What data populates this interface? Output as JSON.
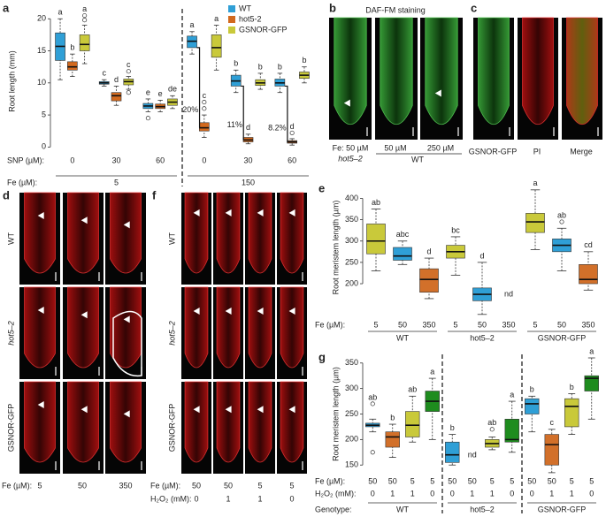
{
  "panels": [
    "a",
    "b",
    "c",
    "d",
    "e",
    "f",
    "g"
  ],
  "images": {
    "b": {
      "title": "DAF-FM staining",
      "fe1": "Fe: 50 µM",
      "geno1": "hot5–2",
      "fe2": "50 µM",
      "fe3": "250 µM",
      "geno2": "WT"
    },
    "c": {
      "labels": [
        "GSNOR-GFP",
        "PI",
        "Merge"
      ]
    },
    "d": {
      "rows": [
        "WT",
        "hot5–2",
        "GSNOR-GFP"
      ],
      "fe_label": "Fe (µM):",
      "fe": [
        "5",
        "50",
        "350"
      ]
    },
    "f": {
      "rows": [
        "WT",
        "hot5–2",
        "GSNOR-GFP"
      ],
      "fe_label": "Fe (µM):",
      "fe": [
        "50",
        "50",
        "5",
        "5"
      ],
      "h2o2_label": "H₂O₂ (mM):",
      "h2o2": [
        "0",
        "1",
        "1",
        "0"
      ]
    }
  },
  "chart_data": [
    {
      "type": "box",
      "ylabel": "Root length (mm)",
      "ylim": [
        -0.5,
        21
      ],
      "yticks": [
        0,
        5,
        10,
        15,
        20
      ],
      "dividers": true,
      "x_rows": [
        {
          "label": "SNP (µM):",
          "values": [
            "0",
            "30",
            "60",
            "0",
            "30",
            "60"
          ]
        }
      ],
      "group_row": {
        "label": "Fe (µM):",
        "values": [
          "5",
          "150"
        ]
      },
      "series": [
        {
          "name": "WT",
          "color": "#2f9fd6",
          "values": [
            {
              "min": 10.5,
              "q1": 13.5,
              "median": 15.7,
              "q3": 17.8,
              "max": 20,
              "outliers": [],
              "label": "a"
            },
            {
              "min": 9.5,
              "q1": 9.8,
              "median": 10,
              "q3": 10.2,
              "max": 10.5,
              "outliers": [],
              "label": "c"
            },
            {
              "min": 5.5,
              "q1": 6,
              "median": 6.4,
              "q3": 6.8,
              "max": 7.5,
              "outliers": [
                4.5
              ],
              "label": "e"
            },
            {
              "min": 14.5,
              "q1": 15.5,
              "median": 16.5,
              "q3": 17.3,
              "max": 18,
              "outliers": [],
              "label": "a"
            },
            {
              "min": 8.5,
              "q1": 9.5,
              "median": 10.3,
              "q3": 11.2,
              "max": 12,
              "outliers": [],
              "label": "b"
            },
            {
              "min": 8.5,
              "q1": 9.5,
              "median": 10,
              "q3": 10.6,
              "max": 11.5,
              "outliers": [],
              "label": "b"
            }
          ]
        },
        {
          "name": "hot5-2",
          "color": "#d2691e",
          "notes": [
            null,
            null,
            null,
            "20%",
            "11%",
            "8.2%"
          ],
          "values": [
            {
              "min": 11,
              "q1": 12,
              "median": 12.5,
              "q3": 13.3,
              "max": 14.5,
              "outliers": [],
              "label": "b"
            },
            {
              "min": 6.5,
              "q1": 7.2,
              "median": 8,
              "q3": 8.5,
              "max": 9.5,
              "outliers": [],
              "label": "d"
            },
            {
              "min": 5.5,
              "q1": 6,
              "median": 6.3,
              "q3": 6.7,
              "max": 7.3,
              "outliers": [],
              "label": "e"
            },
            {
              "min": 1.5,
              "q1": 2.5,
              "median": 3,
              "q3": 3.8,
              "max": 5,
              "outliers": [
                6,
                7
              ],
              "label": "c"
            },
            {
              "min": 0.5,
              "q1": 0.8,
              "median": 1.1,
              "q3": 1.5,
              "max": 2,
              "outliers": [],
              "label": "d"
            },
            {
              "min": 0.3,
              "q1": 0.6,
              "median": 0.8,
              "q3": 1,
              "max": 1.3,
              "outliers": [
                2.2
              ],
              "label": "d"
            }
          ]
        },
        {
          "name": "GSNOR-GFP",
          "color": "#c9c93a",
          "values": [
            {
              "min": 13,
              "q1": 15,
              "median": 16,
              "q3": 17.5,
              "max": 19,
              "outliers": [
                19.8,
                20.5
              ],
              "label": "a"
            },
            {
              "min": 9,
              "q1": 9.7,
              "median": 10.2,
              "q3": 10.6,
              "max": 11,
              "outliers": [
                8.5,
                11.8
              ],
              "label": "c"
            },
            {
              "min": 6,
              "q1": 6.5,
              "median": 7,
              "q3": 7.5,
              "max": 8,
              "outliers": [],
              "label": "de"
            },
            {
              "min": 12,
              "q1": 14,
              "median": 15.5,
              "q3": 17.5,
              "max": 19,
              "outliers": [],
              "label": "a"
            },
            {
              "min": 9,
              "q1": 9.6,
              "median": 10,
              "q3": 10.5,
              "max": 11.5,
              "outliers": [],
              "label": "b"
            },
            {
              "min": 10,
              "q1": 10.7,
              "median": 11.2,
              "q3": 11.7,
              "max": 12.5,
              "outliers": [],
              "label": "b"
            }
          ]
        }
      ]
    },
    {
      "type": "box",
      "ylabel": "Root meristem length (µm)",
      "ylim": [
        140,
        430
      ],
      "yticks": [
        200,
        250,
        300,
        350,
        400
      ],
      "dividers": false,
      "x_rows": [
        {
          "label": "Fe (µM):",
          "values": [
            "5",
            "50",
            "350"
          ]
        }
      ],
      "group_row": {
        "label": null,
        "values": [
          "WT",
          "hot5–2",
          "GSNOR-GFP"
        ]
      },
      "colors": [
        "#c9c93a",
        "#2f9fd6",
        "#d2702a"
      ],
      "boxes": [
        [
          {
            "min": 230,
            "q1": 270,
            "median": 300,
            "q3": 340,
            "max": 375,
            "outliers": [],
            "label": "ab"
          },
          {
            "min": 245,
            "q1": 255,
            "median": 265,
            "q3": 285,
            "max": 300,
            "outliers": [],
            "label": "abc"
          },
          {
            "min": 165,
            "q1": 180,
            "median": 210,
            "q3": 235,
            "max": 260,
            "outliers": [],
            "label": "d"
          }
        ],
        [
          {
            "min": 220,
            "q1": 260,
            "median": 275,
            "q3": 290,
            "max": 310,
            "outliers": [],
            "label": "bc"
          },
          {
            "min": 128,
            "q1": 160,
            "median": 175,
            "q3": 190,
            "max": 250,
            "outliers": [],
            "label": "d"
          },
          {
            "label": "nd"
          }
        ],
        [
          {
            "min": 280,
            "q1": 320,
            "median": 345,
            "q3": 365,
            "max": 420,
            "outliers": [],
            "label": "a"
          },
          {
            "min": 230,
            "q1": 275,
            "median": 290,
            "q3": 305,
            "max": 330,
            "outliers": [
              345
            ],
            "label": "ab"
          },
          {
            "min": 185,
            "q1": 200,
            "median": 210,
            "q3": 245,
            "max": 275,
            "outliers": [],
            "label": "cd"
          }
        ]
      ]
    },
    {
      "type": "box",
      "ylabel": "Root meristem length (µm)",
      "ylim": [
        140,
        360
      ],
      "yticks": [
        150,
        200,
        250,
        300,
        350
      ],
      "dividers": true,
      "x_rows": [
        {
          "label": "Fe (µM):",
          "values": [
            "50",
            "50",
            "5",
            "5"
          ]
        },
        {
          "label": "H₂O₂ (mM):",
          "values": [
            "0",
            "1",
            "1",
            "0"
          ]
        }
      ],
      "group_row": {
        "label": "Genotype:",
        "values": [
          "WT",
          "hot5–2",
          "GSNOR-GFP"
        ]
      },
      "colors": [
        "#2f9fd6",
        "#d2702a",
        "#c9c93a",
        "#1e8c1e"
      ],
      "boxes": [
        [
          {
            "min": 215,
            "q1": 225,
            "median": 228,
            "q3": 232,
            "max": 240,
            "outliers": [
              270,
              175
            ],
            "label": "ab"
          },
          {
            "min": 165,
            "q1": 185,
            "median": 205,
            "q3": 215,
            "max": 230,
            "outliers": [],
            "label": "b"
          },
          {
            "min": 195,
            "q1": 205,
            "median": 228,
            "q3": 255,
            "max": 285,
            "outliers": [],
            "label": "ab"
          },
          {
            "min": 200,
            "q1": 255,
            "median": 275,
            "q3": 295,
            "max": 320,
            "outliers": [],
            "label": "a"
          }
        ],
        [
          {
            "min": 150,
            "q1": 155,
            "median": 170,
            "q3": 195,
            "max": 210,
            "outliers": [],
            "label": "b"
          },
          {
            "label": "nd"
          },
          {
            "min": 180,
            "q1": 185,
            "median": 192,
            "q3": 200,
            "max": 205,
            "outliers": [
              220
            ],
            "label": "ab"
          },
          {
            "min": 175,
            "q1": 195,
            "median": 200,
            "q3": 240,
            "max": 275,
            "outliers": [],
            "label": "a"
          }
        ],
        [
          {
            "min": 215,
            "q1": 250,
            "median": 270,
            "q3": 280,
            "max": 285,
            "outliers": [],
            "label": "b"
          },
          {
            "min": 135,
            "q1": 150,
            "median": 190,
            "q3": 210,
            "max": 220,
            "outliers": [],
            "label": "c"
          },
          {
            "min": 210,
            "q1": 225,
            "median": 265,
            "q3": 280,
            "max": 290,
            "outliers": [],
            "label": "b"
          },
          {
            "min": 240,
            "q1": 295,
            "median": 320,
            "q3": 325,
            "max": 360,
            "outliers": [],
            "label": "a"
          }
        ]
      ]
    }
  ]
}
